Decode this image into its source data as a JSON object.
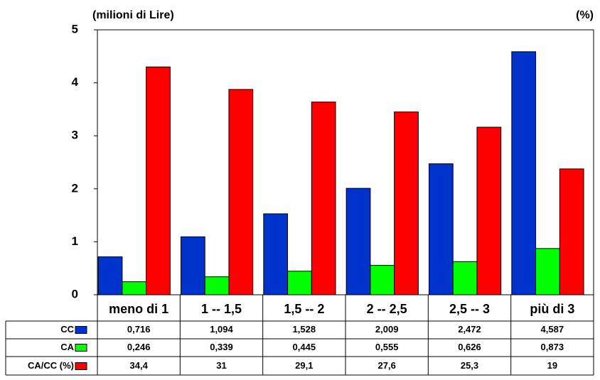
{
  "chart_data": {
    "type": "bar",
    "y_label": "(milioni di Lire)",
    "y2_label": "(%)",
    "categories": [
      "meno di 1",
      "1 -- 1,5",
      "1,5 -- 2",
      "2 -- 2,5",
      "2,5 -- 3",
      "più di 3"
    ],
    "series": [
      {
        "name": "CC",
        "color": "#0033cc",
        "values": [
          0.716,
          1.094,
          1.528,
          2.009,
          2.472,
          4.587
        ],
        "value_labels": [
          "0,716",
          "1,094",
          "1,528",
          "2,009",
          "2,472",
          "4,587"
        ]
      },
      {
        "name": "CA",
        "color": "#00ff00",
        "values": [
          0.246,
          0.339,
          0.445,
          0.555,
          0.626,
          0.873
        ],
        "value_labels": [
          "0,246",
          "0,339",
          "0,445",
          "0,555",
          "0,626",
          "0,873"
        ]
      },
      {
        "name": "CA/CC (%)",
        "color": "#ff0000",
        "axis": "y2",
        "values": [
          34.4,
          31,
          29.1,
          27.6,
          25.3,
          19
        ],
        "value_labels": [
          "34,4",
          "31",
          "29,1",
          "27,6",
          "25,3",
          "19"
        ]
      }
    ],
    "ylim": [
      0,
      5
    ],
    "yticks": [
      0,
      1,
      2,
      3,
      4,
      5
    ],
    "y2lim": [
      0,
      40
    ],
    "grid": false
  }
}
